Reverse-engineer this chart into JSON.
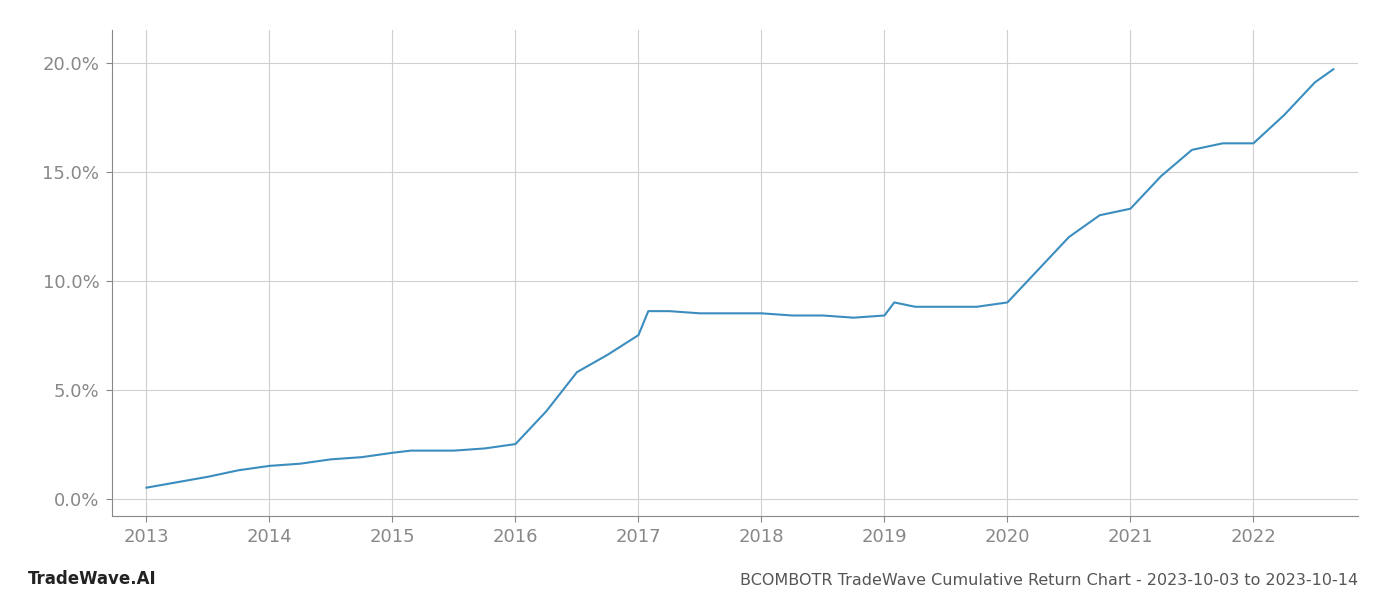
{
  "x_values": [
    2013.0,
    2013.2,
    2013.5,
    2013.75,
    2014.0,
    2014.25,
    2014.5,
    2014.75,
    2015.0,
    2015.15,
    2015.3,
    2015.5,
    2015.75,
    2016.0,
    2016.25,
    2016.5,
    2016.75,
    2017.0,
    2017.08,
    2017.25,
    2017.5,
    2017.75,
    2018.0,
    2018.25,
    2018.5,
    2018.75,
    2019.0,
    2019.08,
    2019.25,
    2019.5,
    2019.75,
    2020.0,
    2020.25,
    2020.5,
    2020.75,
    2021.0,
    2021.25,
    2021.5,
    2021.75,
    2022.0,
    2022.25,
    2022.5,
    2022.65
  ],
  "y_values": [
    0.005,
    0.007,
    0.01,
    0.013,
    0.015,
    0.016,
    0.018,
    0.019,
    0.021,
    0.022,
    0.022,
    0.022,
    0.023,
    0.025,
    0.04,
    0.058,
    0.066,
    0.075,
    0.086,
    0.086,
    0.085,
    0.085,
    0.085,
    0.084,
    0.084,
    0.083,
    0.084,
    0.09,
    0.088,
    0.088,
    0.088,
    0.09,
    0.105,
    0.12,
    0.13,
    0.133,
    0.148,
    0.16,
    0.163,
    0.163,
    0.176,
    0.191,
    0.197
  ],
  "line_color": "#3b8dbf",
  "line_width": 1.5,
  "background_color": "#ffffff",
  "grid_color": "#d0d0d0",
  "title": "BCOMBOTR TradeWave Cumulative Return Chart - 2023-10-03 to 2023-10-14",
  "watermark": "TradeWave.AI",
  "xlim": [
    2012.72,
    2022.85
  ],
  "ylim": [
    -0.008,
    0.215
  ],
  "yticks": [
    0.0,
    0.05,
    0.1,
    0.15,
    0.2
  ],
  "ytick_labels": [
    "0.0%",
    "5.0%",
    "10.0%",
    "15.0%",
    "20.0%"
  ],
  "xticks": [
    2013,
    2014,
    2015,
    2016,
    2017,
    2018,
    2019,
    2020,
    2021,
    2022
  ],
  "xtick_labels": [
    "2013",
    "2014",
    "2015",
    "2016",
    "2017",
    "2018",
    "2019",
    "2020",
    "2021",
    "2022"
  ],
  "tick_fontsize": 13,
  "title_fontsize": 11.5,
  "watermark_fontsize": 12,
  "tick_color": "#888888"
}
